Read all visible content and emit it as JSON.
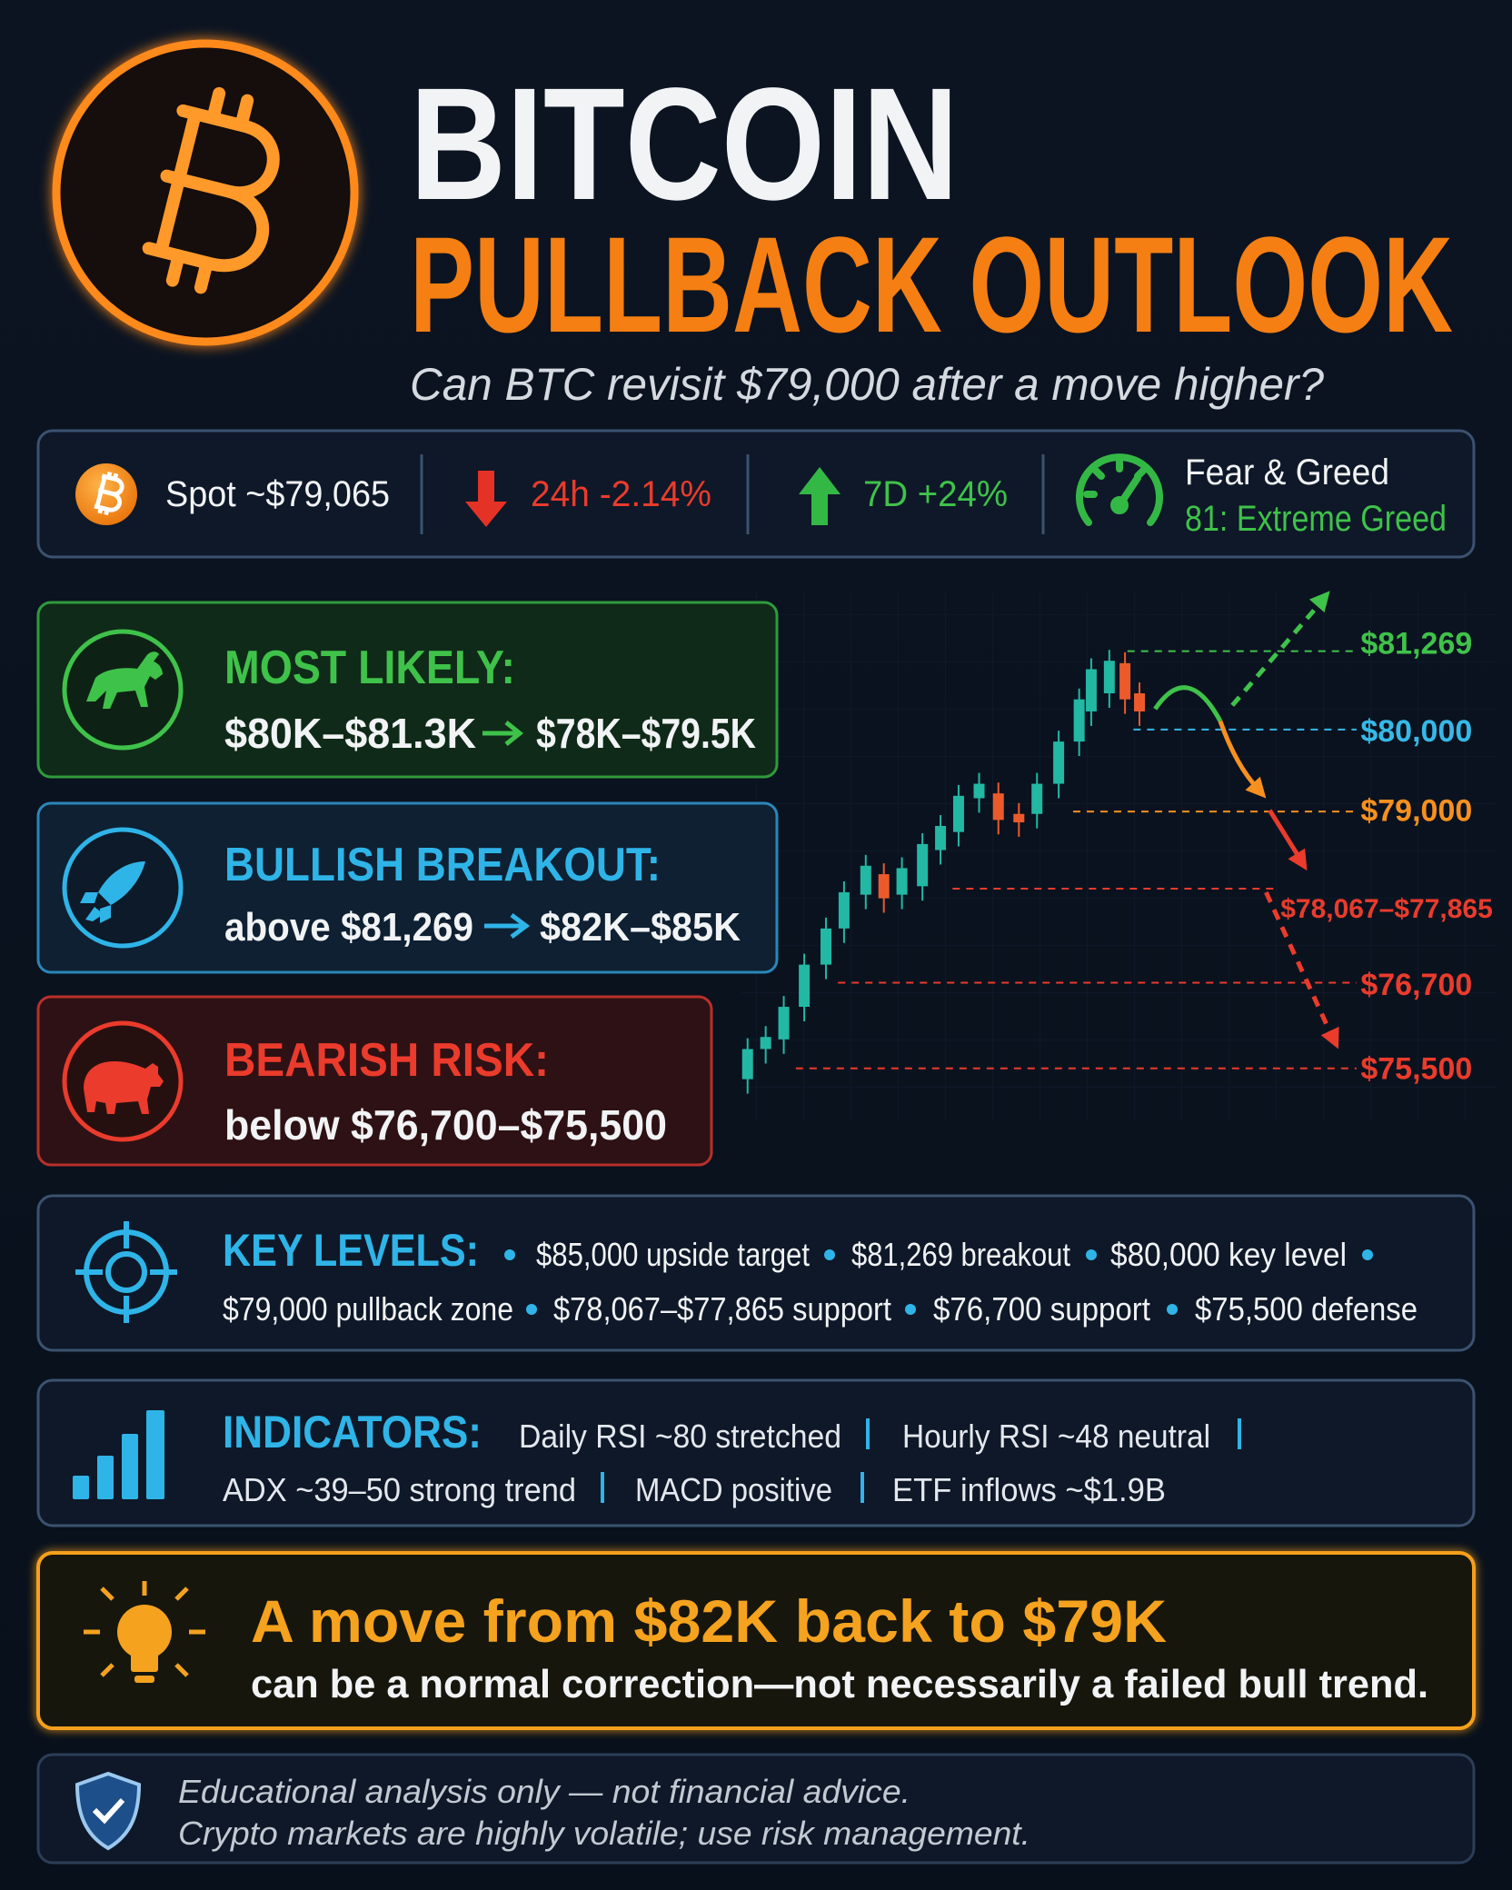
{
  "header": {
    "title_line1": "BITCOIN",
    "title_line2": "PULLBACK OUTLOOK",
    "subtitle": "Can BTC revisit $79,000 after a move higher?"
  },
  "stats": {
    "spot": "Spot ~$79,065",
    "change_24h": "24h -2.14%",
    "change_7d": "7D +24%",
    "fear_greed_label": "Fear & Greed",
    "fear_greed_value": "81: Extreme Greed"
  },
  "scenarios": [
    {
      "title": "MOST LIKELY:",
      "from": "$80K–$81.3K",
      "to": "$78K–$79.5K"
    },
    {
      "title": "BULLISH BREAKOUT:",
      "from": "above $81,269",
      "to": "$82K–$85K"
    },
    {
      "title": "BEARISH RISK:",
      "text": "below $76,700–$75,500"
    }
  ],
  "chart_levels": [
    "$81,269",
    "$80,000",
    "$79,000",
    "$78,067–$77,865",
    "$76,700",
    "$75,500"
  ],
  "key_levels": {
    "title": "KEY LEVELS:",
    "items": [
      "$85,000 upside target",
      "$81,269 breakout",
      "$80,000 key level",
      "$79,000 pullback zone",
      "$78,067–$77,865 support",
      "$76,700 support",
      "$75,500 defense"
    ]
  },
  "indicators": {
    "title": "INDICATORS:",
    "items": [
      "Daily RSI ~80 stretched",
      "Hourly RSI ~48 neutral",
      "ADX ~39–50 strong trend",
      "MACD positive",
      "ETF inflows ~$1.9B"
    ]
  },
  "callout": {
    "headline": "A move from $82K back to $79K",
    "text": "can be a normal correction—not necessarily a failed bull trend."
  },
  "disclaimer": [
    "Educational analysis only — not financial advice.",
    "Crypto markets are highly volatile; use risk management."
  ]
}
